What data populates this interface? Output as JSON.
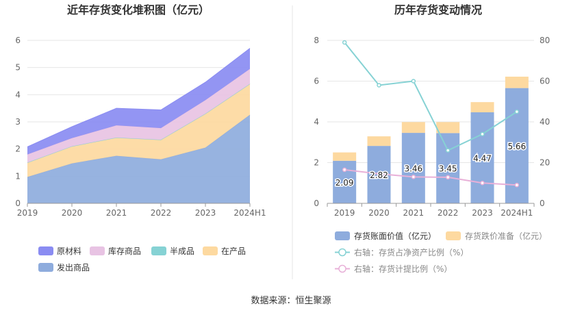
{
  "chart_data": [
    {
      "type": "area",
      "title": "近年存货变化堆积图（亿元）",
      "x": [
        "2019",
        "2020",
        "2021",
        "2022",
        "2023",
        "2024H1"
      ],
      "ylim": [
        0,
        6
      ],
      "yticks": [
        0,
        1,
        2,
        3,
        4,
        5,
        6
      ],
      "stacked": true,
      "grid": true,
      "legend_position": "bottom-left",
      "series": [
        {
          "name": "发出商品",
          "values": [
            0.97,
            1.47,
            1.75,
            1.62,
            2.05,
            3.26
          ],
          "color": "#8eacdd"
        },
        {
          "name": "在产品",
          "values": [
            0.53,
            0.63,
            0.67,
            0.72,
            1.25,
            1.14
          ],
          "color": "#fdd9a0"
        },
        {
          "name": "半成品",
          "values": [
            0.0,
            0.0,
            0.0,
            0.0,
            0.0,
            0.0
          ],
          "color": "#86d2d4"
        },
        {
          "name": "库存商品",
          "values": [
            0.3,
            0.3,
            0.45,
            0.43,
            0.5,
            0.55
          ],
          "color": "#e8c3e3"
        },
        {
          "name": "原材料",
          "values": [
            0.28,
            0.42,
            0.63,
            0.67,
            0.66,
            0.76
          ],
          "color": "#8a8cf2"
        }
      ],
      "legend_order": [
        "原材料",
        "库存商品",
        "半成品",
        "在产品",
        "发出商品"
      ]
    },
    {
      "type": "bar",
      "title": "历年存货变动情况",
      "categories": [
        "2019",
        "2020",
        "2021",
        "2022",
        "2023",
        "2024H1"
      ],
      "ylim": [
        0,
        8
      ],
      "yticks": [
        0,
        2,
        4,
        6,
        8
      ],
      "y2lim": [
        0,
        80
      ],
      "y2ticks": [
        0,
        20,
        40,
        60,
        80
      ],
      "legend_position": "bottom",
      "series": [
        {
          "name": "存货账面价值（亿元）",
          "kind": "bar",
          "axis": "left",
          "values": [
            2.09,
            2.82,
            3.46,
            3.45,
            4.47,
            5.66
          ],
          "labels": [
            "2.09",
            "2.82",
            "3.46",
            "3.45",
            "4.47",
            "5.66"
          ],
          "color": "#8eacdd"
        },
        {
          "name": "存货跌价准备（亿元）",
          "kind": "bar",
          "axis": "left",
          "values": [
            0.41,
            0.47,
            0.53,
            0.54,
            0.5,
            0.56
          ],
          "color": "#fdd9a0"
        },
        {
          "name": "右轴：存货占净资产比例（%）",
          "kind": "line",
          "axis": "right",
          "values": [
            79,
            58,
            60,
            26,
            34,
            45
          ],
          "color": "#86d2d4"
        },
        {
          "name": "右轴：存货计提比例（%）",
          "kind": "line",
          "axis": "right",
          "values": [
            16.5,
            14.5,
            13,
            12.8,
            10,
            9
          ],
          "color": "#e8b0d8"
        }
      ]
    }
  ],
  "source": "数据来源：恒生聚源",
  "colors": {
    "axis_text": "#666666",
    "grid": "#e6e6e6",
    "title": "#333333",
    "divider": "#e5e5e5"
  }
}
